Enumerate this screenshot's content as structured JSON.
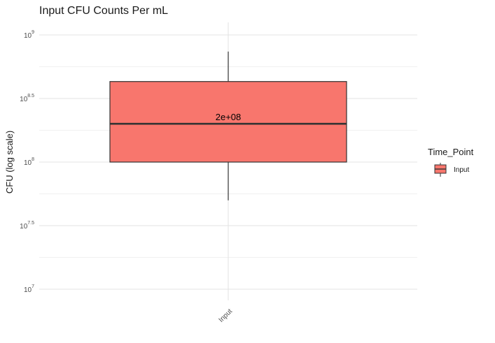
{
  "chart_data": {
    "type": "box",
    "title": "Input CFU Counts Per mL",
    "xlabel": "",
    "ylabel": "CFU (log scale)",
    "y_scale": "log10",
    "ylim": [
      9000000,
      1000000000
    ],
    "y_ticks": [
      {
        "value": 10000000,
        "base": "10",
        "exp": "7"
      },
      {
        "value": 31622777,
        "base": "10",
        "exp": "7.5"
      },
      {
        "value": 100000000,
        "base": "10",
        "exp": "8"
      },
      {
        "value": 316227766,
        "base": "10",
        "exp": "8.5"
      },
      {
        "value": 1000000000,
        "base": "10",
        "exp": "9"
      }
    ],
    "categories": [
      "Input"
    ],
    "boxes": [
      {
        "category": "Input",
        "whisker_low": 50000000,
        "q1": 100000000,
        "median": 200000000,
        "q3": 430000000,
        "whisker_high": 740000000,
        "label": "2e+08",
        "fill": "#F8766D"
      }
    ],
    "legend": {
      "title": "Time_Point",
      "position": "right",
      "entries": [
        {
          "label": "Input",
          "color": "#F8766D"
        }
      ]
    },
    "grid": true
  }
}
